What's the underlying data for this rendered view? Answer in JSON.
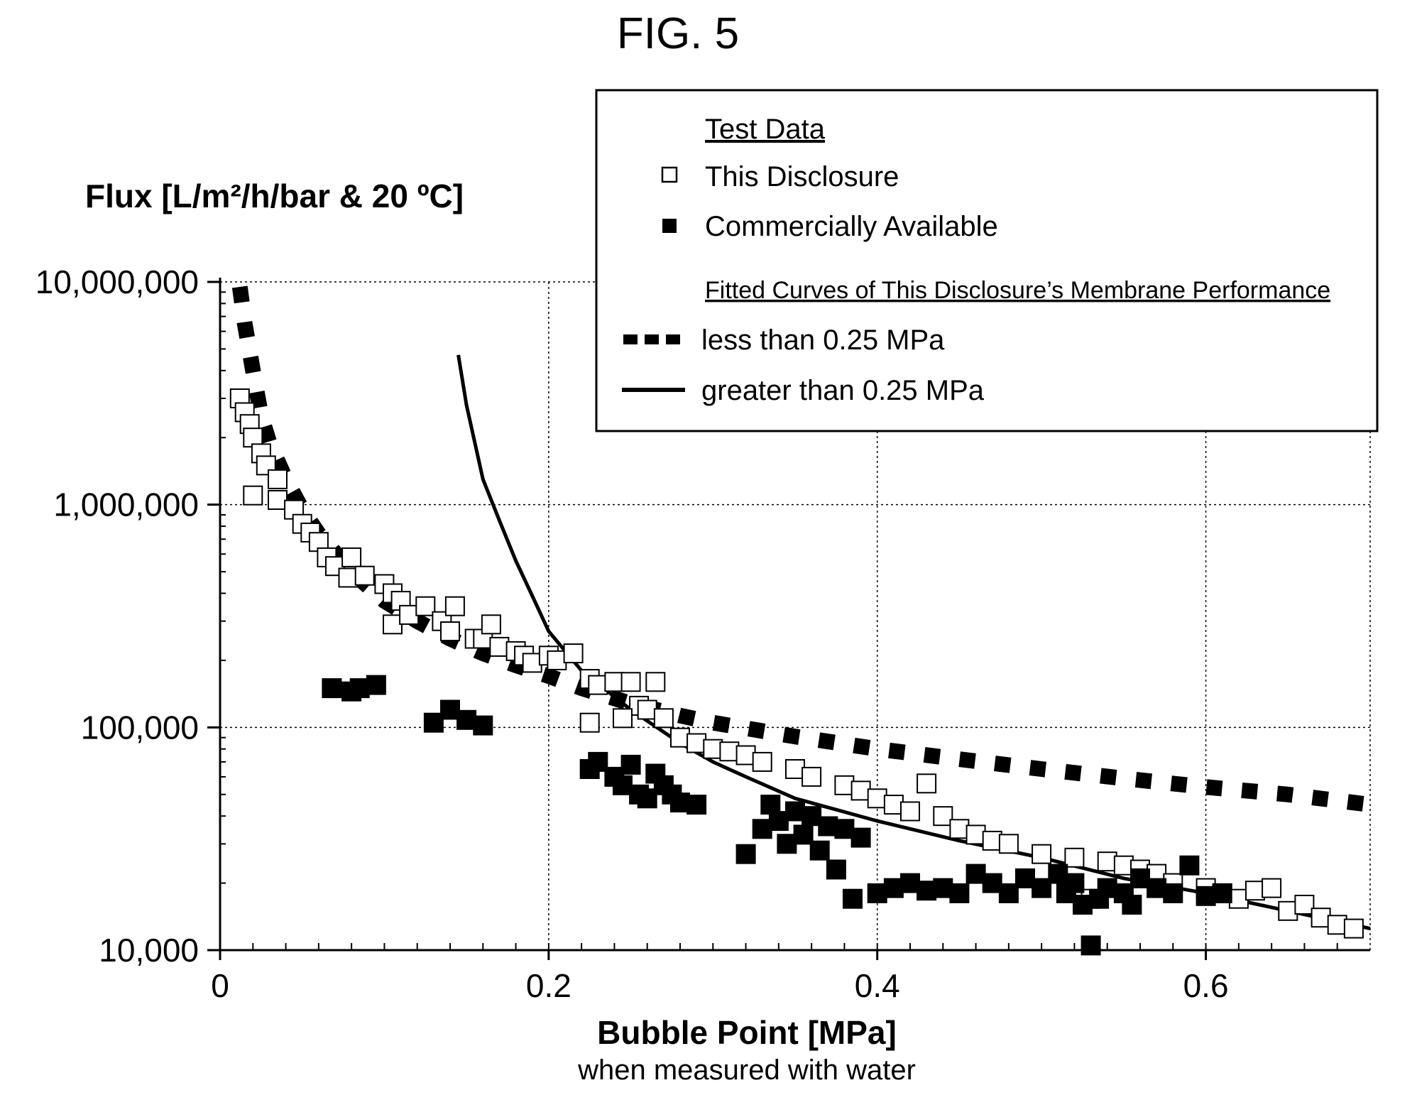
{
  "figure_label": "FIG. 5",
  "chart_data": {
    "type": "scatter",
    "title": "",
    "xlabel": "Bubble Point [MPa]",
    "xlabel_sub": "when measured with water",
    "ylabel": "Flux [L/m²/h/bar & 20 ºC]",
    "xlim": [
      0,
      0.7
    ],
    "ylim": [
      10000,
      10000000
    ],
    "y_scale": "log",
    "grid": true,
    "legend_placement": "top-right",
    "x_ticks": [
      {
        "value": 0,
        "label": "0"
      },
      {
        "value": 0.2,
        "label": "0.2"
      },
      {
        "value": 0.4,
        "label": "0.4"
      },
      {
        "value": 0.6,
        "label": "0.6"
      }
    ],
    "y_ticks": [
      {
        "value": 10000000,
        "label": "10,000,000"
      },
      {
        "value": 1000000,
        "label": "1,000,000"
      },
      {
        "value": 100000,
        "label": "100,000"
      },
      {
        "value": 10000,
        "label": "10,000"
      }
    ],
    "legend": {
      "test_data_heading": "Test Data",
      "this_disclosure": "This Disclosure",
      "commercially_available": "Commercially Available",
      "fitted_heading": "Fitted Curves of This Disclosure’s Membrane Performance",
      "less_than": "less than 0.25 MPa",
      "greater_than": "greater than 0.25 MPa"
    },
    "series": [
      {
        "name": "This Disclosure",
        "marker": "open-square",
        "points": [
          [
            0.012,
            3000000
          ],
          [
            0.015,
            2600000
          ],
          [
            0.018,
            2300000
          ],
          [
            0.02,
            2000000
          ],
          [
            0.025,
            1700000
          ],
          [
            0.028,
            1500000
          ],
          [
            0.035,
            1300000
          ],
          [
            0.02,
            1100000
          ],
          [
            0.035,
            1050000
          ],
          [
            0.045,
            950000
          ],
          [
            0.05,
            820000
          ],
          [
            0.055,
            750000
          ],
          [
            0.06,
            680000
          ],
          [
            0.065,
            580000
          ],
          [
            0.07,
            530000
          ],
          [
            0.08,
            580000
          ],
          [
            0.078,
            470000
          ],
          [
            0.088,
            480000
          ],
          [
            0.1,
            440000
          ],
          [
            0.105,
            400000
          ],
          [
            0.11,
            370000
          ],
          [
            0.105,
            290000
          ],
          [
            0.115,
            320000
          ],
          [
            0.125,
            350000
          ],
          [
            0.135,
            300000
          ],
          [
            0.14,
            270000
          ],
          [
            0.143,
            350000
          ],
          [
            0.155,
            250000
          ],
          [
            0.16,
            250000
          ],
          [
            0.165,
            290000
          ],
          [
            0.17,
            230000
          ],
          [
            0.18,
            220000
          ],
          [
            0.185,
            210000
          ],
          [
            0.19,
            195000
          ],
          [
            0.2,
            210000
          ],
          [
            0.205,
            200000
          ],
          [
            0.215,
            215000
          ],
          [
            0.225,
            165000
          ],
          [
            0.23,
            155000
          ],
          [
            0.24,
            160000
          ],
          [
            0.25,
            160000
          ],
          [
            0.255,
            125000
          ],
          [
            0.26,
            120000
          ],
          [
            0.265,
            160000
          ],
          [
            0.225,
            105000
          ],
          [
            0.245,
            110000
          ],
          [
            0.27,
            110000
          ],
          [
            0.28,
            90000
          ],
          [
            0.29,
            85000
          ],
          [
            0.3,
            80000
          ],
          [
            0.31,
            78000
          ],
          [
            0.32,
            75000
          ],
          [
            0.33,
            70000
          ],
          [
            0.35,
            65000
          ],
          [
            0.36,
            60000
          ],
          [
            0.38,
            55000
          ],
          [
            0.39,
            52000
          ],
          [
            0.4,
            48000
          ],
          [
            0.41,
            45000
          ],
          [
            0.42,
            42000
          ],
          [
            0.43,
            56000
          ],
          [
            0.44,
            40000
          ],
          [
            0.45,
            35000
          ],
          [
            0.46,
            33000
          ],
          [
            0.47,
            31000
          ],
          [
            0.48,
            30000
          ],
          [
            0.5,
            27000
          ],
          [
            0.52,
            26000
          ],
          [
            0.54,
            25000
          ],
          [
            0.55,
            24000
          ],
          [
            0.56,
            23000
          ],
          [
            0.57,
            22000
          ],
          [
            0.6,
            19000
          ],
          [
            0.61,
            18000
          ],
          [
            0.62,
            17000
          ],
          [
            0.63,
            18500
          ],
          [
            0.64,
            19000
          ],
          [
            0.65,
            15000
          ],
          [
            0.66,
            16000
          ],
          [
            0.67,
            14000
          ],
          [
            0.68,
            13000
          ],
          [
            0.69,
            12500
          ],
          [
            0.53,
            17000
          ],
          [
            0.58,
            20000
          ]
        ]
      },
      {
        "name": "Commercially Available",
        "marker": "filled-square",
        "points": [
          [
            0.068,
            150000
          ],
          [
            0.08,
            145000
          ],
          [
            0.085,
            150000
          ],
          [
            0.095,
            155000
          ],
          [
            0.13,
            105000
          ],
          [
            0.14,
            120000
          ],
          [
            0.15,
            108000
          ],
          [
            0.16,
            102000
          ],
          [
            0.225,
            65000
          ],
          [
            0.23,
            70000
          ],
          [
            0.24,
            60000
          ],
          [
            0.245,
            55000
          ],
          [
            0.25,
            68000
          ],
          [
            0.255,
            50000
          ],
          [
            0.26,
            48000
          ],
          [
            0.265,
            62000
          ],
          [
            0.27,
            55000
          ],
          [
            0.275,
            50000
          ],
          [
            0.28,
            46000
          ],
          [
            0.29,
            45000
          ],
          [
            0.32,
            27000
          ],
          [
            0.33,
            35000
          ],
          [
            0.335,
            45000
          ],
          [
            0.34,
            38000
          ],
          [
            0.345,
            30000
          ],
          [
            0.35,
            42000
          ],
          [
            0.355,
            33000
          ],
          [
            0.36,
            40000
          ],
          [
            0.365,
            28000
          ],
          [
            0.37,
            36000
          ],
          [
            0.375,
            23000
          ],
          [
            0.38,
            35000
          ],
          [
            0.385,
            17000
          ],
          [
            0.39,
            32000
          ],
          [
            0.4,
            18000
          ],
          [
            0.41,
            19000
          ],
          [
            0.42,
            20000
          ],
          [
            0.43,
            18500
          ],
          [
            0.44,
            19000
          ],
          [
            0.45,
            18000
          ],
          [
            0.46,
            22000
          ],
          [
            0.47,
            20000
          ],
          [
            0.48,
            18000
          ],
          [
            0.49,
            21000
          ],
          [
            0.5,
            19000
          ],
          [
            0.51,
            22000
          ],
          [
            0.515,
            18000
          ],
          [
            0.52,
            20000
          ],
          [
            0.525,
            16000
          ],
          [
            0.53,
            10500
          ],
          [
            0.535,
            17000
          ],
          [
            0.54,
            19000
          ],
          [
            0.55,
            18000
          ],
          [
            0.555,
            16000
          ],
          [
            0.56,
            21000
          ],
          [
            0.57,
            19000
          ],
          [
            0.58,
            18000
          ],
          [
            0.59,
            24000
          ],
          [
            0.6,
            17500
          ],
          [
            0.61,
            18000
          ]
        ]
      }
    ],
    "fitted_curves": [
      {
        "name": "less than 0.25 MPa",
        "style": "dashed-thick",
        "points": [
          [
            0.012,
            9500000
          ],
          [
            0.015,
            6500000
          ],
          [
            0.02,
            4000000
          ],
          [
            0.025,
            2500000
          ],
          [
            0.03,
            1900000
          ],
          [
            0.04,
            1300000
          ],
          [
            0.05,
            950000
          ],
          [
            0.06,
            740000
          ],
          [
            0.08,
            500000
          ],
          [
            0.1,
            370000
          ],
          [
            0.12,
            300000
          ],
          [
            0.14,
            250000
          ],
          [
            0.16,
            215000
          ],
          [
            0.18,
            190000
          ],
          [
            0.2,
            170000
          ],
          [
            0.22,
            150000
          ],
          [
            0.25,
            128000
          ],
          [
            0.28,
            113000
          ],
          [
            0.3,
            105000
          ],
          [
            0.35,
            91000
          ],
          [
            0.4,
            80000
          ],
          [
            0.45,
            72000
          ],
          [
            0.5,
            65000
          ],
          [
            0.55,
            59000
          ],
          [
            0.6,
            54000
          ],
          [
            0.65,
            50000
          ],
          [
            0.7,
            45000
          ]
        ]
      },
      {
        "name": "greater than 0.25 MPa",
        "style": "solid",
        "points": [
          [
            0.145,
            4700000
          ],
          [
            0.15,
            2800000
          ],
          [
            0.16,
            1300000
          ],
          [
            0.17,
            850000
          ],
          [
            0.18,
            560000
          ],
          [
            0.19,
            390000
          ],
          [
            0.2,
            270000
          ],
          [
            0.22,
            180000
          ],
          [
            0.25,
            120000
          ],
          [
            0.28,
            85000
          ],
          [
            0.3,
            70000
          ],
          [
            0.32,
            60000
          ],
          [
            0.35,
            48000
          ],
          [
            0.4,
            38000
          ],
          [
            0.45,
            31000
          ],
          [
            0.5,
            26000
          ],
          [
            0.55,
            21000
          ],
          [
            0.6,
            18000
          ],
          [
            0.65,
            15000
          ],
          [
            0.7,
            12500
          ]
        ]
      }
    ]
  }
}
